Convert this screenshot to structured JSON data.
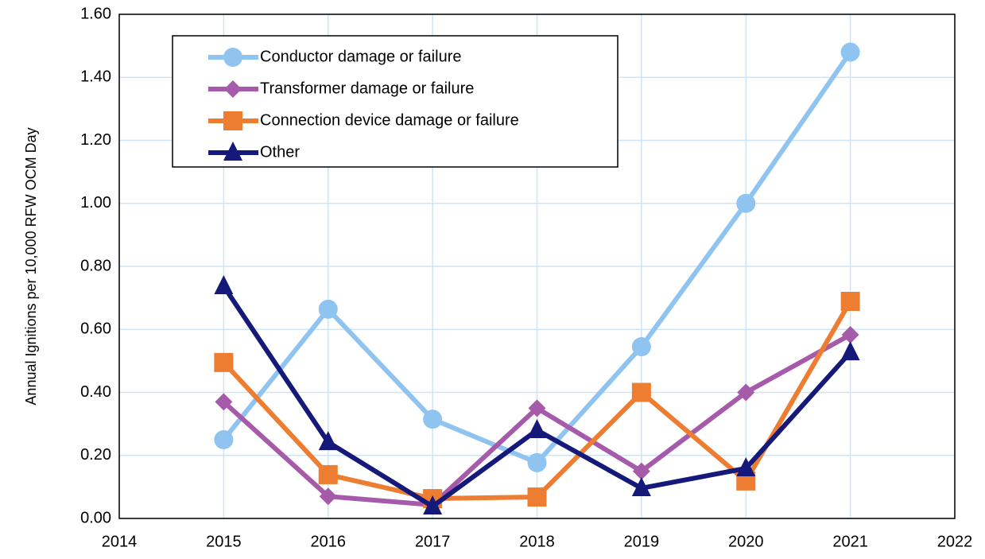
{
  "chart_data": {
    "type": "line",
    "y_label": "Annual Ignitions per 10,000 RFW OCM Day",
    "x": [
      2015,
      2016,
      2017,
      2018,
      2019,
      2020,
      2021
    ],
    "series": [
      {
        "name": "Conductor damage or failure",
        "color": "#8fc3f0",
        "marker": "circle",
        "values": [
          0.25,
          0.664,
          0.315,
          0.177,
          0.545,
          1.0,
          1.48
        ]
      },
      {
        "name": "Transformer damage or failure",
        "color": "#a65aaa",
        "marker": "diamond",
        "values": [
          0.37,
          0.07,
          0.043,
          0.35,
          0.15,
          0.4,
          0.583
        ]
      },
      {
        "name": "Connection device damage or failure",
        "color": "#ed7d31",
        "marker": "square",
        "values": [
          0.495,
          0.139,
          0.063,
          0.068,
          0.4,
          0.119,
          0.689
        ]
      },
      {
        "name": "Other",
        "color": "#14197a",
        "marker": "triangle",
        "values": [
          0.737,
          0.242,
          0.038,
          0.28,
          0.096,
          0.159,
          0.527
        ]
      }
    ],
    "xlim": [
      2014,
      2022
    ],
    "xticks": [
      2014,
      2015,
      2016,
      2017,
      2018,
      2019,
      2020,
      2021,
      2022
    ],
    "ylim": [
      0,
      1.6
    ],
    "yticks": [
      {
        "value": 0,
        "label": "0.00"
      },
      {
        "value": 0.2,
        "label": "0.20"
      },
      {
        "value": 0.4,
        "label": "0.40"
      },
      {
        "value": 0.6,
        "label": "0.60"
      },
      {
        "value": 0.8,
        "label": "0.80"
      },
      {
        "value": 1.0,
        "label": "1.00"
      },
      {
        "value": 1.2,
        "label": "1.20"
      },
      {
        "value": 1.4,
        "label": "1.40"
      },
      {
        "value": 1.6,
        "label": "1.60"
      }
    ],
    "grid": true
  }
}
